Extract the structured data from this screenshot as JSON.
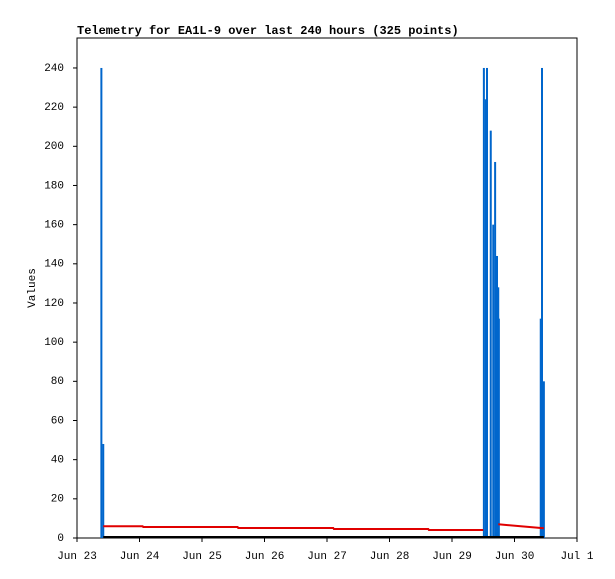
{
  "chart_data": {
    "type": "line",
    "title": "Telemetry for EA1L-9 over last 240 hours (325 points)",
    "y_label": "Values",
    "xlim": [
      0,
      8
    ],
    "ylim": [
      0,
      255.3
    ],
    "xticks": [
      {
        "value": 0,
        "label": "Jun 23"
      },
      {
        "value": 1,
        "label": "Jun 24"
      },
      {
        "value": 2,
        "label": "Jun 25"
      },
      {
        "value": 3,
        "label": "Jun 26"
      },
      {
        "value": 4,
        "label": "Jun 27"
      },
      {
        "value": 5,
        "label": "Jun 28"
      },
      {
        "value": 6,
        "label": "Jun 29"
      },
      {
        "value": 7,
        "label": "Jun 30"
      },
      {
        "value": 8,
        "label": "Jul 1"
      }
    ],
    "yticks": [
      0,
      20,
      40,
      60,
      80,
      100,
      120,
      140,
      160,
      180,
      200,
      220,
      240
    ],
    "series": [
      {
        "type": "bar",
        "color": "#0066cc",
        "x": [
          0.39,
          0.42,
          6.51,
          6.54,
          6.56,
          6.62,
          6.66,
          6.69,
          6.72,
          6.74,
          6.75,
          7.42,
          7.44,
          7.47
        ],
        "values": [
          240,
          48,
          240,
          224,
          240,
          208,
          160,
          192,
          144,
          128,
          112,
          112,
          240,
          80
        ]
      },
      {
        "type": "line",
        "color": "#e00000",
        "x": [
          0.42,
          1.05,
          1.06,
          2.57,
          2.58,
          4.1,
          4.11,
          5.62,
          5.63,
          6.5,
          6.6,
          6.74,
          7.1,
          7.47
        ],
        "values": [
          6,
          6,
          5.6,
          5.6,
          5.1,
          5.1,
          4.6,
          4.6,
          4.1,
          4.1,
          null,
          7,
          6,
          5
        ]
      },
      {
        "type": "line",
        "color": "#000000",
        "x": [
          0.42,
          7.47
        ],
        "values": [
          0.5,
          0.5
        ]
      }
    ]
  }
}
